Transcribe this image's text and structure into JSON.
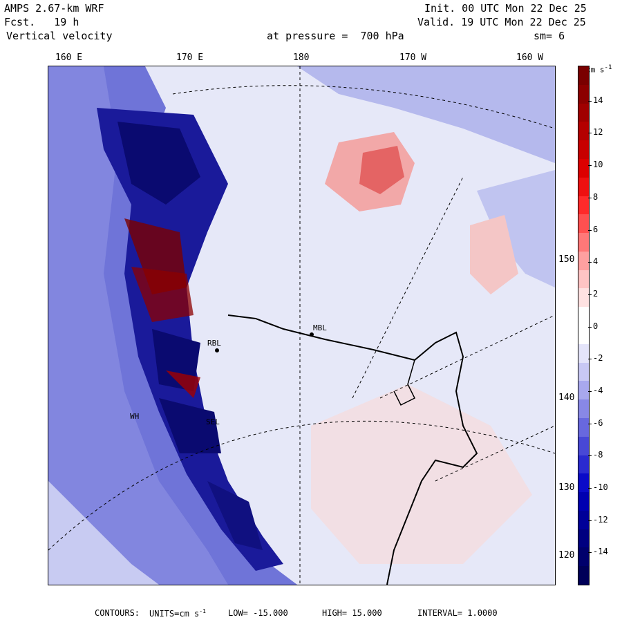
{
  "header": {
    "model": "AMPS 2.67-km WRF",
    "fcst_label": "Fcst.",
    "fcst_value": "19 h",
    "field": "Vertical velocity",
    "init": "Init. 00 UTC Mon 22 Dec 25",
    "valid": "Valid. 19 UTC Mon 22 Dec 25",
    "pressure_label": "at pressure =",
    "pressure_value": "700 hPa",
    "smooth": "sm= 6"
  },
  "longitude_labels": [
    "160 E",
    "170 E",
    "180",
    "170 W",
    "160 W"
  ],
  "latitude_labels": [
    "150 W",
    "140 W",
    "130 W",
    "120 W"
  ],
  "stations": [
    "WH",
    "SEL",
    "MBL",
    "RBL"
  ],
  "colorbar": {
    "units_text": "cm s",
    "units_exp": "-1",
    "labels": [
      "14",
      "12",
      "10",
      "8",
      "6",
      "4",
      "2",
      "0",
      "-2",
      "-4",
      "-6",
      "-8",
      "-10",
      "-12",
      "-14"
    ],
    "colors": [
      "#7a0000",
      "#8c0000",
      "#a00000",
      "#b40000",
      "#c80000",
      "#dc0000",
      "#ee1010",
      "#ff2a2a",
      "#ff5050",
      "#ff7878",
      "#ffa0a0",
      "#ffc4c4",
      "#ffe2e2",
      "#ffffff",
      "#ffffff",
      "#e4e4fa",
      "#c8c8f4",
      "#a8a8ee",
      "#8888e6",
      "#6868de",
      "#4848d6",
      "#2a2ad0",
      "#0a0ac8",
      "#0000b0",
      "#000098",
      "#000080",
      "#00006c",
      "#000058"
    ]
  },
  "footer": {
    "contours": "CONTOURS:",
    "units": "UNITS=cm s",
    "units_exp": "-1",
    "low": "LOW= -15.000",
    "high": "HIGH= 15.000",
    "interval": "INTERVAL= 1.0000"
  }
}
